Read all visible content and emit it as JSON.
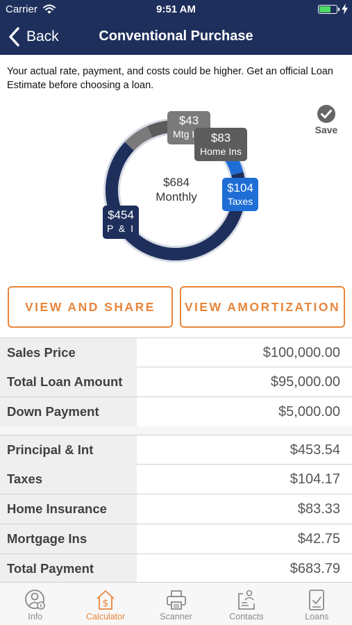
{
  "status_bar": {
    "carrier": "Carrier",
    "time": "9:51 AM",
    "battery_fill": 0.7,
    "battery_color": "#4cd964"
  },
  "nav": {
    "back_label": "Back",
    "title": "Conventional Purchase",
    "background": "#1e2f5c"
  },
  "disclaimer": "Your actual rate, payment, and costs could be higher. Get an official Loan Estimate before choosing a loan.",
  "save": {
    "label": "Save",
    "icon": "checkmark-circle-icon"
  },
  "chart_data": {
    "type": "pie",
    "center_amount": "$684",
    "center_label": "Monthly",
    "slices": [
      {
        "label": "P & I",
        "amount": "$454",
        "value": 453.54,
        "color": "#1e2f5c"
      },
      {
        "label": "Taxes",
        "amount": "$104",
        "value": 104.17,
        "color": "#1e6ed6"
      },
      {
        "label": "Home Ins",
        "amount": "$83",
        "value": 83.33,
        "color": "#5c5c5c"
      },
      {
        "label": "Mtg Ins",
        "amount": "$43",
        "value": 42.75,
        "color": "#7a7a7a"
      }
    ]
  },
  "buttons": {
    "view_share": "VIEW AND SHARE",
    "amortization": "VIEW AMORTIZATION",
    "accent": "#e8853a"
  },
  "loan_table": [
    {
      "label": "Sales Price",
      "value": "$100,000.00"
    },
    {
      "label": "Total Loan Amount",
      "value": "$95,000.00"
    },
    {
      "label": "Down Payment",
      "value": "$5,000.00"
    }
  ],
  "payment_table": [
    {
      "label": "Principal & Int",
      "value": "$453.54"
    },
    {
      "label": "Taxes",
      "value": "$104.17"
    },
    {
      "label": "Home Insurance",
      "value": "$83.33"
    },
    {
      "label": "Mortgage Ins",
      "value": "$42.75"
    },
    {
      "label": "Total Payment",
      "value": "$683.79"
    }
  ],
  "tab_bar": {
    "active": "Calculator",
    "tabs": [
      {
        "label": "Info",
        "icon": "info-person-icon"
      },
      {
        "label": "Calculator",
        "icon": "calculator-house-icon"
      },
      {
        "label": "Scanner",
        "icon": "printer-icon"
      },
      {
        "label": "Contacts",
        "icon": "contacts-icon"
      },
      {
        "label": "Loans",
        "icon": "loan-document-icon"
      }
    ]
  }
}
